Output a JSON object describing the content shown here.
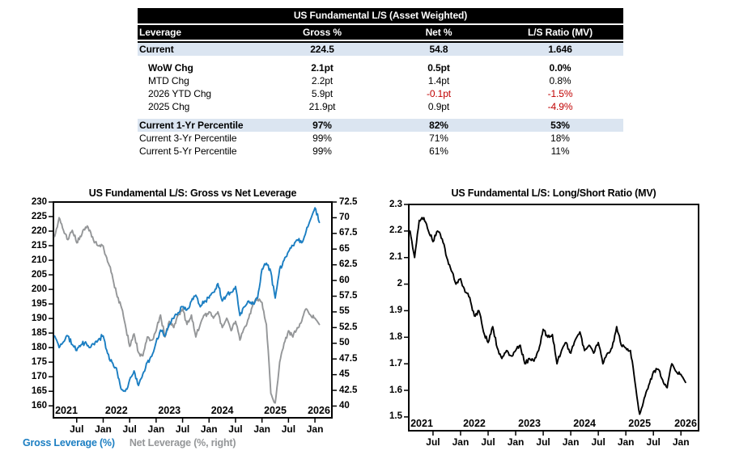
{
  "table": {
    "title": "US Fundamental L/S (Asset Weighted)",
    "columns": [
      "Leverage",
      "Gross %",
      "Net %",
      "L/S Ratio (MV)"
    ],
    "rows": [
      {
        "label": "Current",
        "values": [
          "224.5",
          "54.8",
          "1.646"
        ],
        "bold": true,
        "highlight": true
      },
      {
        "label": "WoW Chg",
        "values": [
          "2.1pt",
          "0.5pt",
          "0.0%"
        ],
        "bold": true,
        "indent": true,
        "gap": true
      },
      {
        "label": "MTD Chg",
        "values": [
          "2.2pt",
          "1.4pt",
          "0.8%"
        ],
        "indent": true
      },
      {
        "label": "2026 YTD Chg",
        "values": [
          "5.9pt",
          "-0.1pt",
          "-1.5%"
        ],
        "indent": true,
        "neg": [
          1,
          2
        ]
      },
      {
        "label": "2025 Chg",
        "values": [
          "21.9pt",
          "0.9pt",
          "-4.9%"
        ],
        "indent": true,
        "neg": [
          2
        ]
      },
      {
        "label": "Current 1-Yr Percentile",
        "values": [
          "97%",
          "82%",
          "53%"
        ],
        "bold": true,
        "highlight": true,
        "gap": true
      },
      {
        "label": "Current 3-Yr Percentile",
        "values": [
          "99%",
          "71%",
          "18%"
        ]
      },
      {
        "label": "Current 5-Yr Percentile",
        "values": [
          "99%",
          "61%",
          "11%"
        ]
      }
    ]
  },
  "colors": {
    "header_bg": "#000000",
    "highlight_bg": "#dbe5f1",
    "negative_red": "#c00000",
    "gross_blue": "#1b7ec2",
    "net_gray": "#949698",
    "ratio_black": "#000000"
  },
  "chart_data": [
    {
      "type": "line",
      "title": "US Fundamental L/S: Gross vs Net Leverage",
      "x_start": 2021.083,
      "x_step_months": 1,
      "xlim": [
        2021.06,
        2026.32
      ],
      "x_year_labels": [
        "2021",
        "2022",
        "2023",
        "2024",
        "2025",
        "2026"
      ],
      "x_month_labels": [
        "Jul",
        "Jan"
      ],
      "left_axis": {
        "lim": [
          155.9,
          230
        ],
        "tick_labels": [
          "230",
          "225",
          "220",
          "215",
          "210",
          "205",
          "200",
          "195",
          "190",
          "185",
          "180",
          "175",
          "170",
          "165",
          "160"
        ]
      },
      "right_axis": {
        "lim": [
          38.13,
          72.5
        ],
        "tick_labels": [
          "72.5",
          "70",
          "67.5",
          "65",
          "62.5",
          "60",
          "57.5",
          "55",
          "52.5",
          "50",
          "47.5",
          "45",
          "42.5",
          "40"
        ]
      },
      "legend_position": "bottom-left",
      "series": [
        {
          "name": "Gross Leverage (%)",
          "axis": "left",
          "color_key": "gross_blue",
          "values": [
            184,
            180,
            182,
            184,
            181,
            179,
            181,
            182,
            180,
            181,
            183,
            184,
            178,
            175,
            173,
            166,
            165,
            169,
            172,
            167,
            171,
            175,
            177,
            182,
            186,
            184,
            188,
            190,
            192,
            194,
            193,
            196,
            198,
            194,
            196,
            197,
            199,
            202,
            196,
            198,
            199,
            201,
            191,
            194,
            196,
            195,
            197,
            207,
            209,
            206,
            197,
            207,
            210,
            213,
            215,
            217,
            216,
            220,
            224,
            228,
            223
          ]
        },
        {
          "name": "Net Leverage (%, right)",
          "axis": "right",
          "color_key": "net_gray",
          "values": [
            67,
            70,
            68,
            66.5,
            68,
            66,
            67,
            68.5,
            68,
            66,
            65.5,
            65.5,
            63,
            61,
            58,
            56,
            53,
            49.5,
            51.5,
            48.5,
            48,
            51,
            50.5,
            52,
            54.5,
            51,
            53.5,
            52.5,
            54.5,
            55.5,
            53,
            54.5,
            51,
            53,
            54.5,
            55,
            54,
            55,
            52.5,
            54,
            52,
            53.5,
            50.5,
            52.5,
            54,
            56.5,
            57,
            56.5,
            53,
            42,
            40.5,
            47,
            50,
            52,
            51,
            52.5,
            53.5,
            55.5,
            54.5,
            54,
            53
          ]
        }
      ]
    },
    {
      "type": "line",
      "title": "US Fundamental L/S: Long/Short Ratio (MV)",
      "x_start": 2021.083,
      "x_step_months": 1,
      "xlim": [
        2021.06,
        2026.32
      ],
      "x_year_labels": [
        "2021",
        "2022",
        "2023",
        "2024",
        "2025",
        "2026"
      ],
      "x_month_labels": [
        "Jul",
        "Jan"
      ],
      "left_axis": {
        "lim": [
          1.448,
          2.3
        ],
        "tick_labels": [
          "2.3",
          "2.2",
          "2.1",
          "2",
          "1.9",
          "1.8",
          "1.7",
          "1.6",
          "1.5"
        ]
      },
      "series": [
        {
          "name": "L/S Ratio (MV)",
          "axis": "left",
          "color_key": "ratio_black",
          "values": [
            2.2,
            2.1,
            2.24,
            2.25,
            2.2,
            2.16,
            2.2,
            2.17,
            2.1,
            2.05,
            2.0,
            2.02,
            1.97,
            1.95,
            1.88,
            1.9,
            1.82,
            1.78,
            1.84,
            1.76,
            1.72,
            1.75,
            1.73,
            1.75,
            1.77,
            1.7,
            1.72,
            1.71,
            1.75,
            1.83,
            1.8,
            1.81,
            1.7,
            1.75,
            1.78,
            1.74,
            1.79,
            1.82,
            1.75,
            1.77,
            1.74,
            1.78,
            1.7,
            1.74,
            1.76,
            1.84,
            1.77,
            1.76,
            1.75,
            1.63,
            1.51,
            1.57,
            1.62,
            1.67,
            1.68,
            1.64,
            1.61,
            1.7,
            1.67,
            1.66,
            1.63
          ]
        }
      ]
    }
  ]
}
